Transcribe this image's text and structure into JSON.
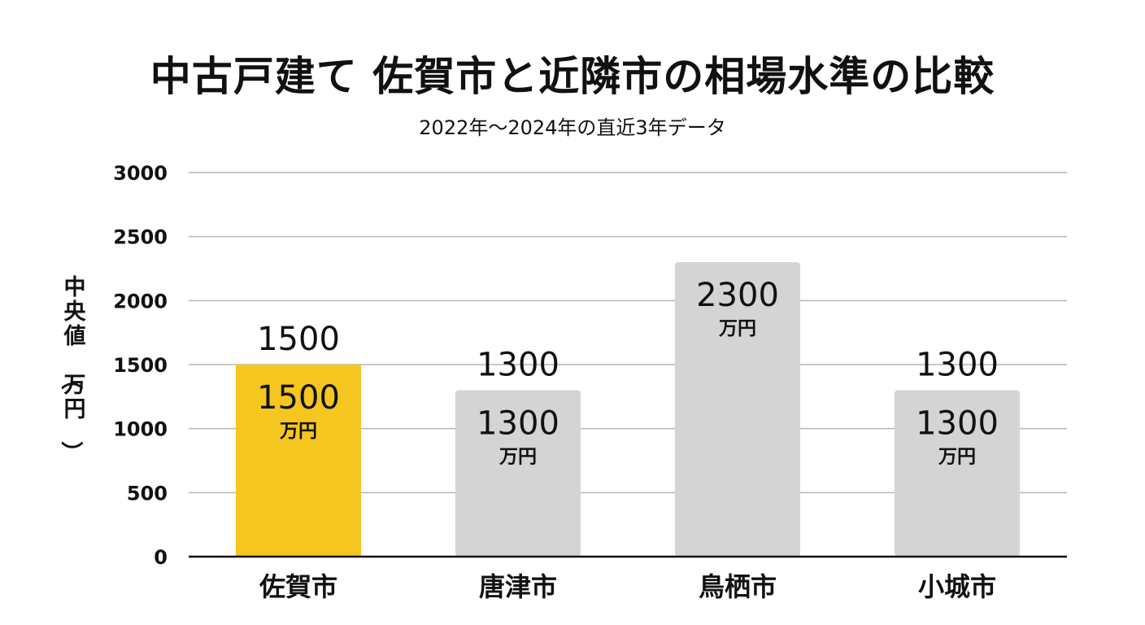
{
  "chart_data": {
    "type": "bar",
    "title": "中古戸建て 佐賀市と近隣市の相場水準の比較",
    "subtitle": "2022年〜2024年の直近3年データ",
    "ylabel": "中央値（万円）",
    "xlabel": "",
    "categories": [
      "佐賀市",
      "唐津市",
      "鳥栖市",
      "小城市"
    ],
    "values": [
      1500,
      1300,
      2300,
      1300
    ],
    "top_labels": [
      "1500",
      "1300",
      "",
      "1300"
    ],
    "inner_value_labels": [
      "1500",
      "1300",
      "2300",
      "1300"
    ],
    "unit_label": "万円",
    "ylim": [
      0,
      3000
    ],
    "yticks": [
      0,
      500,
      1000,
      1500,
      2000,
      2500,
      3000
    ],
    "grid": true,
    "legend": "none",
    "colors": {
      "highlight": "#F5C61F",
      "default": "#D4D4D4",
      "grid": "#B5B5B5",
      "axis": "#111111"
    },
    "highlight_index": 0
  }
}
